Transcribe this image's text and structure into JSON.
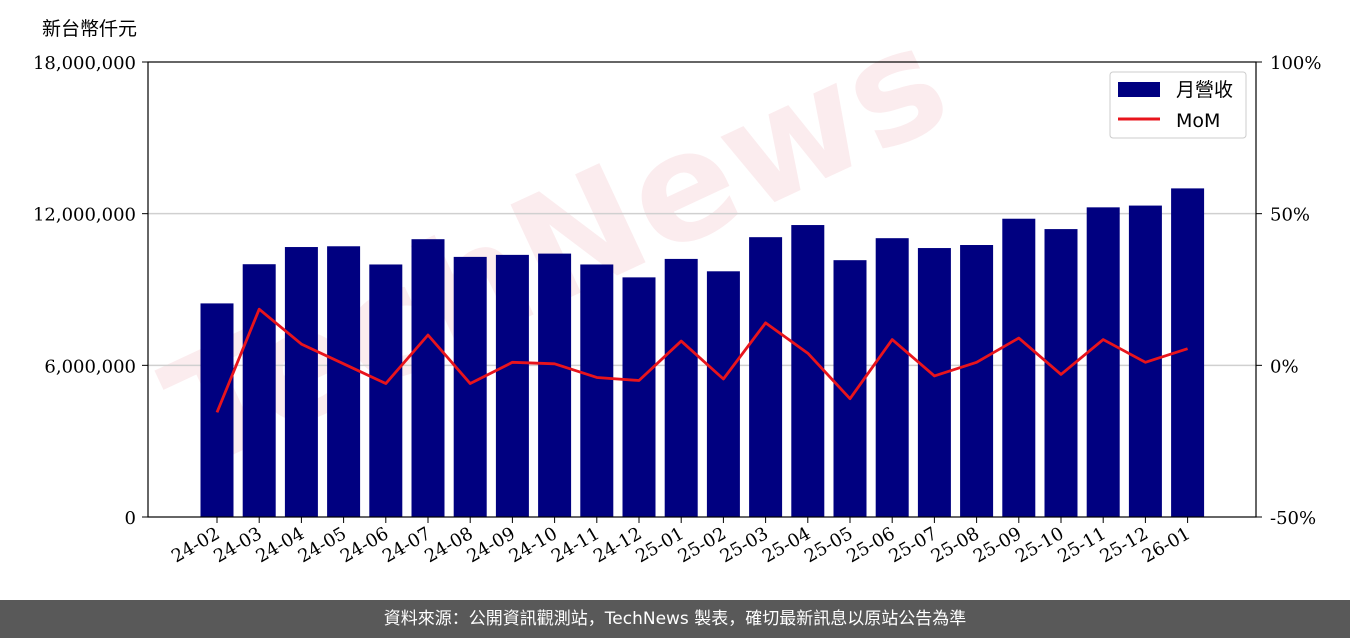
{
  "unit_label": "新台幣仟元",
  "watermark": "TechNews",
  "footer": "資料來源：公開資訊觀測站，TechNews 製表，確切最新訊息以原站公告為準",
  "colors": {
    "bar": "#000080",
    "line": "#e8141c",
    "footer_bg": "#595959"
  },
  "chart_data": {
    "type": "bar",
    "categories": [
      "24-02",
      "24-03",
      "24-04",
      "24-05",
      "24-06",
      "24-07",
      "24-08",
      "24-09",
      "24-10",
      "24-11",
      "24-12",
      "25-01",
      "25-02",
      "25-03",
      "25-04",
      "25-05",
      "25-06",
      "25-07",
      "25-08",
      "25-09",
      "25-10",
      "25-11",
      "25-12",
      "26-01"
    ],
    "series": [
      {
        "name": "月營收",
        "type": "bar",
        "axis": "left",
        "values": [
          8450000,
          10000000,
          10680000,
          10710000,
          9990000,
          10990000,
          10290000,
          10370000,
          10420000,
          9990000,
          9480000,
          10210000,
          9720000,
          11070000,
          11550000,
          10160000,
          11030000,
          10640000,
          10760000,
          11800000,
          11390000,
          12250000,
          12320000,
          13000000
        ]
      },
      {
        "name": "MoM",
        "type": "line",
        "axis": "right",
        "values": [
          -15.5,
          18.5,
          7.0,
          0.5,
          -6.0,
          10.0,
          -6.0,
          1.0,
          0.5,
          -4.0,
          -5.0,
          8.0,
          -4.5,
          14.0,
          4.0,
          -11.0,
          8.5,
          -3.5,
          1.0,
          9.0,
          -3.0,
          8.5,
          1.0,
          5.5
        ]
      }
    ],
    "left_axis": {
      "ylim": [
        0,
        18000000
      ],
      "ticks": [
        "0",
        "6,000,000",
        "12,000,000",
        "18,000,000"
      ]
    },
    "right_axis": {
      "ylim": [
        -50,
        100
      ],
      "ticks": [
        "-50%",
        "0%",
        "50%",
        "100%"
      ]
    },
    "legend": {
      "placement": "top-right",
      "entries": [
        "月營收",
        "MoM"
      ]
    },
    "grid": true
  }
}
